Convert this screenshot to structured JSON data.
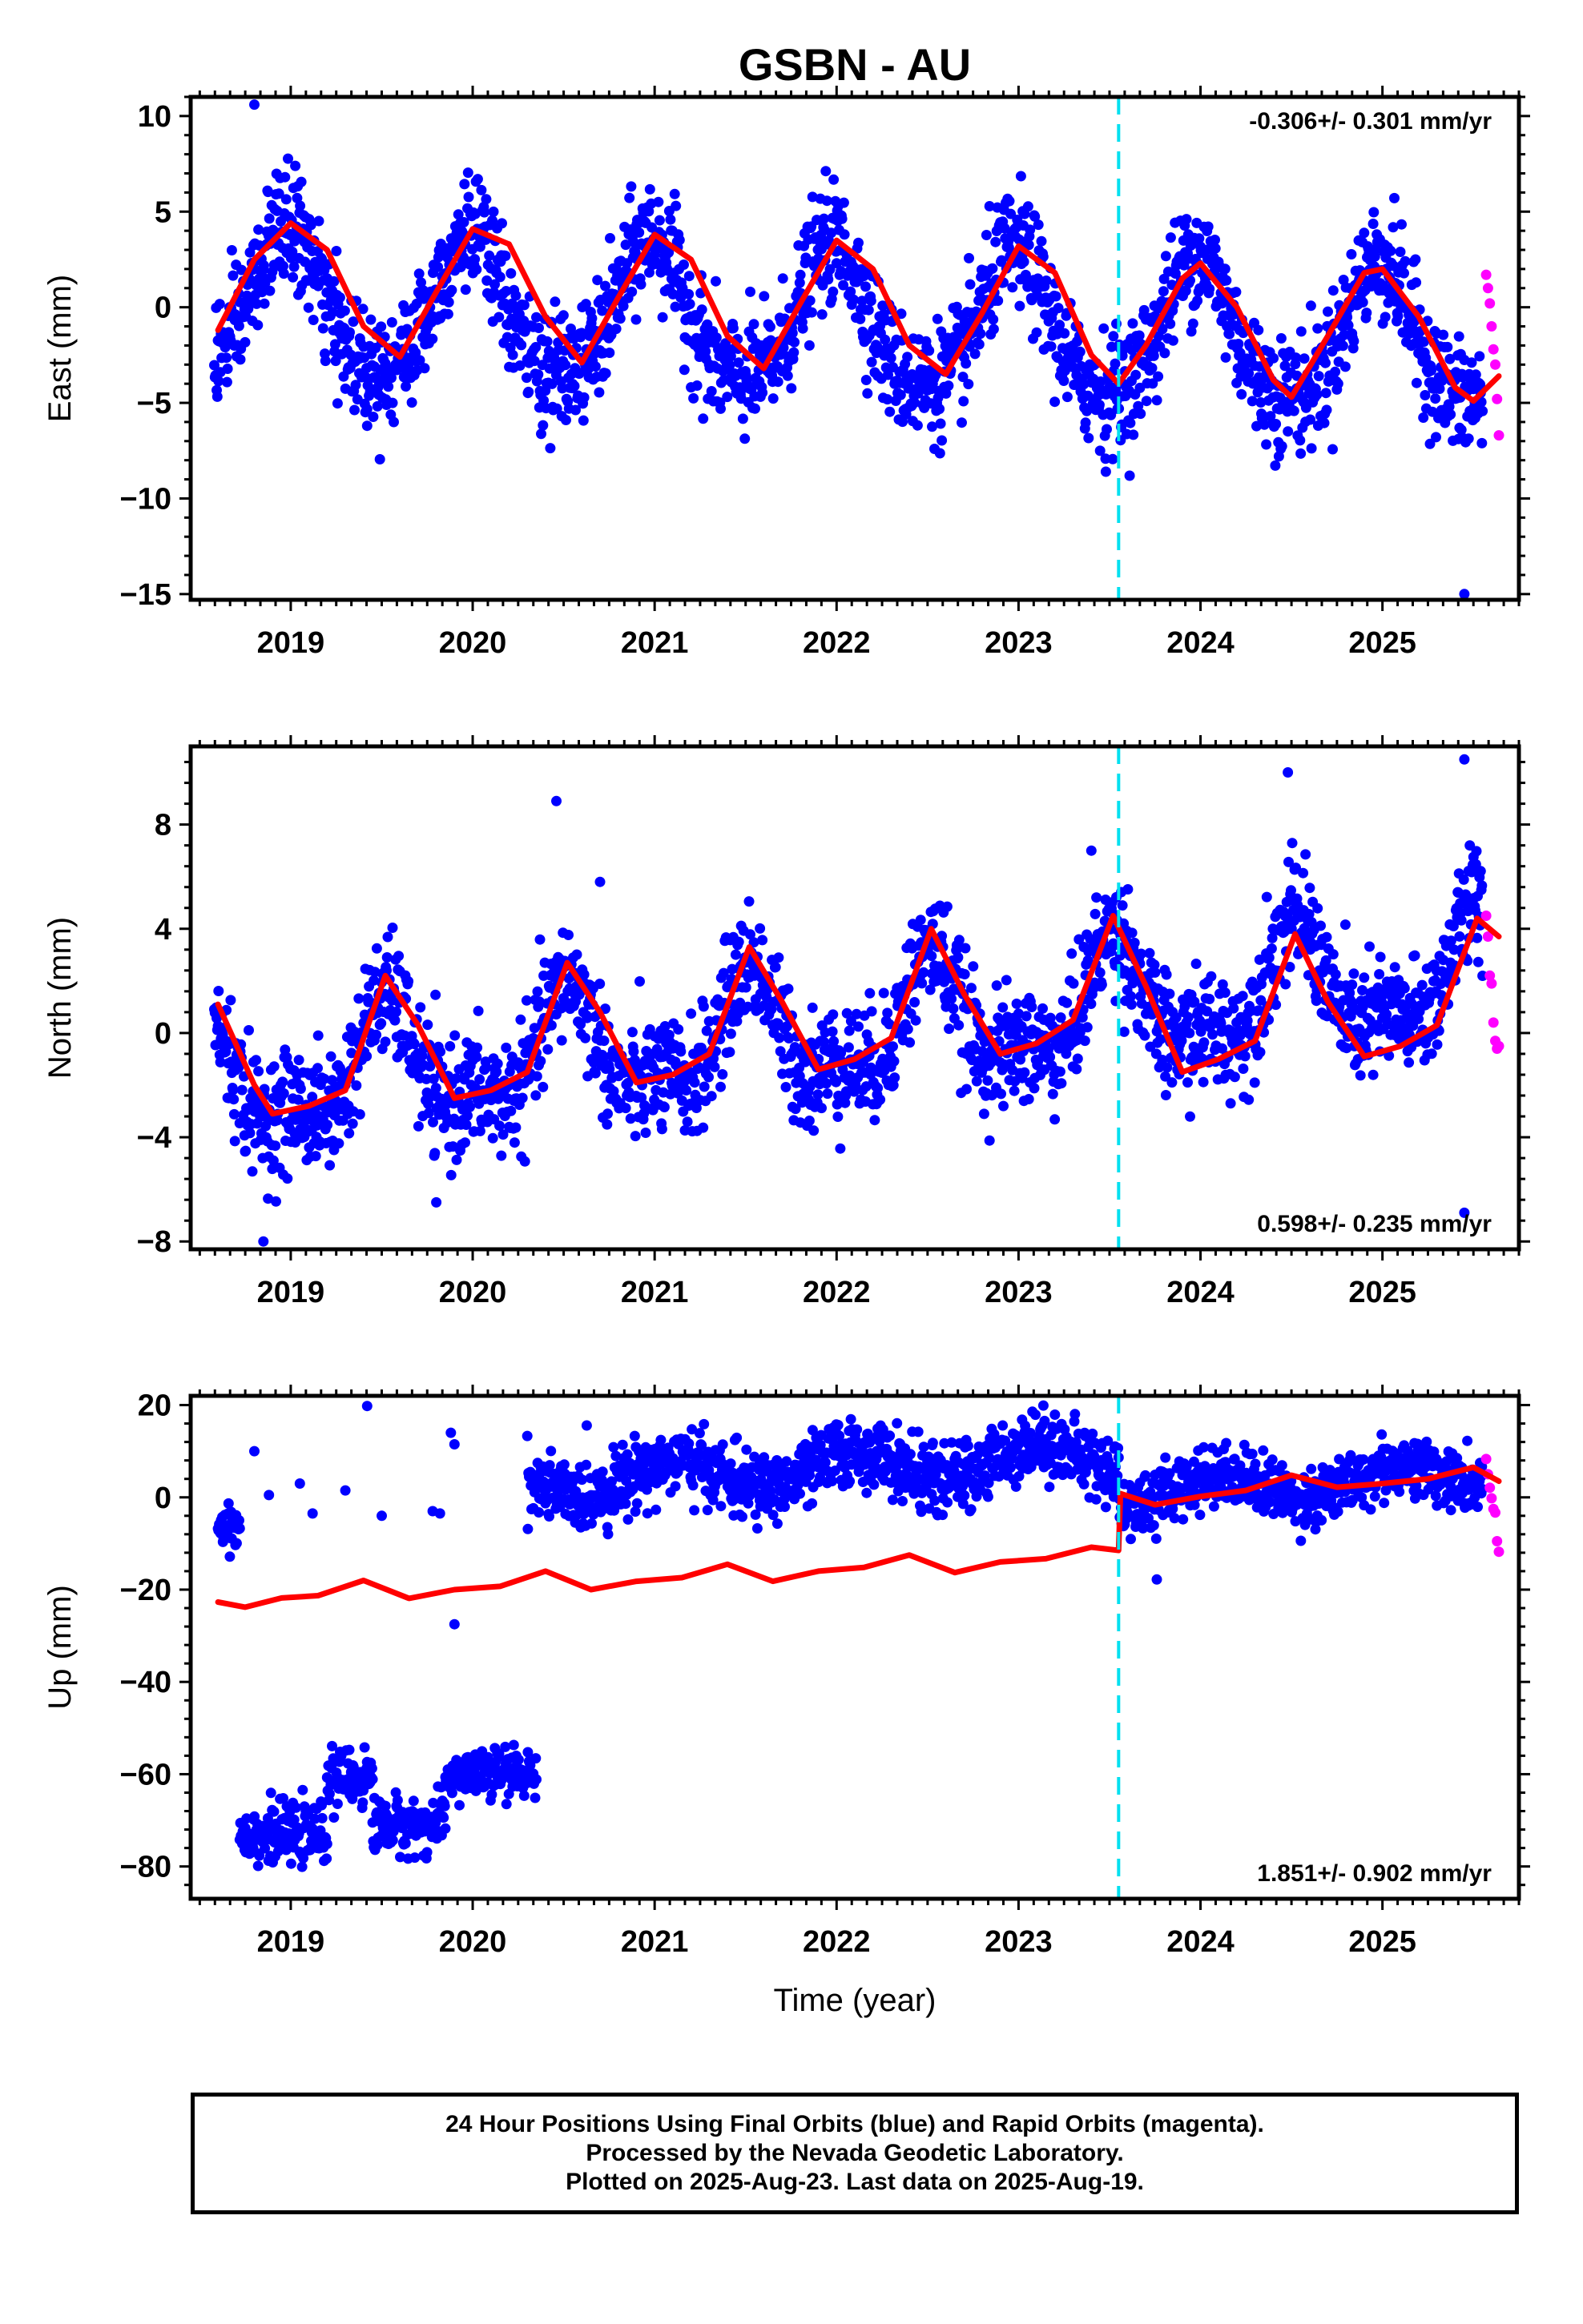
{
  "chart_data": [
    {
      "type": "scatter",
      "title": "GSBN - AU",
      "ylabel": "East (mm)",
      "xlabel": "",
      "xlim": [
        2018.45,
        2025.75
      ],
      "ylim": [
        -15.3,
        11
      ],
      "yticks": [
        10,
        5,
        0,
        -5,
        -10,
        -15
      ],
      "xticks": [
        2019,
        2020,
        2021,
        2022,
        2023,
        2024,
        2025
      ],
      "rate_text": "-0.306+/- 0.301 mm/yr",
      "rate_position": "top-right",
      "offset_epoch": 2023.55,
      "series": [
        {
          "color": "#0000ff",
          "model": {
            "slope": -0.306,
            "intercept": 0.2,
            "annual_amplitude": 3.6,
            "annual_peak_year": 2018.98,
            "semiannual_amplitude": 0.6,
            "semiannual_peak_year": 2018.98
          },
          "scatter_sd": 1.5,
          "x_range": [
            2018.58,
            2025.55
          ]
        },
        {
          "color": "#ff00ff",
          "x_range": [
            2025.57,
            2025.64
          ],
          "values": [
            1.7,
            1.0,
            0.2,
            -1.0,
            -2.2,
            -3.0,
            -4.8,
            -6.7
          ]
        }
      ],
      "outliers": [
        [
          2018.8,
          10.6
        ],
        [
          2025.45,
          -15.0
        ],
        [
          2019.42,
          -6.2
        ],
        [
          2023.48,
          -8.6
        ]
      ],
      "fit_color": "#ff0000",
      "fit": {
        "x": [
          2018.6,
          2018.8,
          2019.0,
          2019.2,
          2019.4,
          2019.6,
          2019.8,
          2020.0,
          2020.2,
          2020.4,
          2020.6,
          2020.8,
          2021.0,
          2021.2,
          2021.4,
          2021.6,
          2021.8,
          2022.0,
          2022.2,
          2022.4,
          2022.6,
          2022.8,
          2023.0,
          2023.2,
          2023.4,
          2023.55,
          2023.7,
          2023.9,
          2024.0,
          2024.2,
          2024.4,
          2024.5,
          2024.7,
          2024.9,
          2025.0,
          2025.2,
          2025.4,
          2025.5,
          2025.64
        ],
        "y": [
          -1.2,
          2.5,
          4.4,
          3.0,
          -1.0,
          -2.6,
          0.8,
          4.1,
          3.3,
          -0.5,
          -2.9,
          0.5,
          3.8,
          2.5,
          -1.5,
          -3.2,
          0.2,
          3.5,
          2.0,
          -2.0,
          -3.5,
          -0.3,
          3.2,
          1.8,
          -2.5,
          -4.0,
          -2.0,
          1.5,
          2.3,
          0.0,
          -3.8,
          -4.7,
          -1.5,
          1.8,
          2.0,
          -0.5,
          -4.2,
          -4.9,
          -3.6
        ]
      }
    },
    {
      "type": "scatter",
      "title": "",
      "ylabel": "North (mm)",
      "xlabel": "",
      "xlim": [
        2018.45,
        2025.75
      ],
      "ylim": [
        -8.3,
        11
      ],
      "yticks": [
        8,
        4,
        0,
        -4,
        -8
      ],
      "xticks": [
        2019,
        2020,
        2021,
        2022,
        2023,
        2024,
        2025
      ],
      "rate_text": "0.598+/- 0.235 mm/yr",
      "rate_position": "bottom-right",
      "offset_epoch": 2023.55,
      "series": [
        {
          "color": "#0000ff",
          "model": {
            "slope": 0.598,
            "intercept": -2.0,
            "annual_amplitude": 2.0,
            "annual_peak_year": 2019.52,
            "semiannual_amplitude": 0.9,
            "semiannual_peak_year": 2019.52
          },
          "scatter_sd": 1.1,
          "x_range": [
            2018.58,
            2025.55
          ]
        },
        {
          "color": "#ff00ff",
          "x_range": [
            2025.57,
            2025.64
          ],
          "values": [
            4.5,
            3.7,
            2.2,
            1.9,
            0.4,
            -0.3,
            -0.6,
            -0.5
          ]
        }
      ],
      "outliers": [
        [
          2020.46,
          8.9
        ],
        [
          2024.48,
          10.0
        ],
        [
          2025.45,
          10.5
        ],
        [
          2025.45,
          -6.9
        ],
        [
          2018.85,
          -8.0
        ],
        [
          2019.8,
          -6.5
        ],
        [
          2020.7,
          5.8
        ],
        [
          2023.4,
          7.0
        ]
      ],
      "fit_color": "#ff0000",
      "fit": {
        "x": [
          2018.6,
          2018.8,
          2018.9,
          2019.1,
          2019.3,
          2019.52,
          2019.7,
          2019.9,
          2020.1,
          2020.3,
          2020.52,
          2020.7,
          2020.9,
          2021.1,
          2021.3,
          2021.52,
          2021.7,
          2021.9,
          2022.1,
          2022.3,
          2022.52,
          2022.7,
          2022.9,
          2023.1,
          2023.3,
          2023.52,
          2023.7,
          2023.9,
          2024.1,
          2024.3,
          2024.52,
          2024.7,
          2024.9,
          2025.1,
          2025.3,
          2025.52,
          2025.64
        ],
        "y": [
          1.1,
          -2.0,
          -3.1,
          -2.8,
          -2.2,
          2.2,
          0.3,
          -2.5,
          -2.2,
          -1.5,
          2.7,
          0.8,
          -1.9,
          -1.6,
          -0.8,
          3.3,
          1.2,
          -1.4,
          -1.0,
          -0.2,
          4.0,
          1.5,
          -0.8,
          -0.4,
          0.5,
          4.5,
          1.8,
          -1.5,
          -1.0,
          -0.3,
          3.8,
          1.2,
          -0.9,
          -0.5,
          0.3,
          4.4,
          3.7
        ]
      }
    },
    {
      "type": "scatter",
      "title": "",
      "ylabel": "Up (mm)",
      "xlabel": "Time (year)",
      "xlim": [
        2018.45,
        2025.75
      ],
      "ylim": [
        -87,
        22
      ],
      "yticks": [
        20,
        0,
        -20,
        -40,
        -60,
        -80
      ],
      "xticks": [
        2019,
        2020,
        2021,
        2022,
        2023,
        2024,
        2025
      ],
      "rate_text": "1.851+/- 0.902 mm/yr",
      "rate_position": "bottom-right",
      "offset_epoch": 2023.55,
      "series": [
        {
          "color": "#0000ff",
          "segments": [
            {
              "x_range": [
                2018.6,
                2018.72
              ],
              "level": -6,
              "scatter_sd": 2.5
            },
            {
              "x_range": [
                2018.72,
                2019.2
              ],
              "level": -73,
              "scatter_sd": 3.0
            },
            {
              "x_range": [
                2019.2,
                2019.45
              ],
              "level": -61,
              "scatter_sd": 3.0
            },
            {
              "x_range": [
                2019.45,
                2019.85
              ],
              "level": -71,
              "scatter_sd": 3.0
            },
            {
              "x_range": [
                2019.85,
                2020.35
              ],
              "level": -60,
              "scatter_sd": 2.8
            },
            {
              "x_range": [
                2020.3,
                2023.55
              ],
              "level": 3,
              "slope": 1.851,
              "annual_amplitude": 3.5,
              "scatter_sd": 3.6
            },
            {
              "x_range": [
                2023.55,
                2025.55
              ],
              "level": 1,
              "slope": 1.851,
              "annual_amplitude": 3.0,
              "scatter_sd": 3.2
            }
          ]
        },
        {
          "color": "#ff00ff",
          "x_range": [
            2025.57,
            2025.64
          ],
          "values": [
            8.3,
            5.0,
            2.1,
            -0.2,
            -2.5,
            -3.3,
            -9.5,
            -11.8
          ]
        }
      ],
      "outliers": [
        [
          2019.42,
          19.8
        ],
        [
          2019.9,
          -27.5
        ],
        [
          2023.76,
          -17.8
        ],
        [
          2018.8,
          10.0
        ],
        [
          2019.88,
          14.0
        ],
        [
          2019.9,
          11.5
        ],
        [
          2018.88,
          0.5
        ],
        [
          2019.05,
          3.0
        ],
        [
          2019.12,
          -3.5
        ],
        [
          2019.3,
          1.5
        ],
        [
          2019.5,
          -4.0
        ],
        [
          2019.78,
          -3.0
        ],
        [
          2019.82,
          -3.5
        ]
      ],
      "fit_color": "#ff0000",
      "fit": {
        "x": [
          2018.6,
          2018.75,
          2018.95,
          2019.15,
          2019.4,
          2019.65,
          2019.9,
          2020.15,
          2020.4,
          2020.65,
          2020.9,
          2021.15,
          2021.4,
          2021.65,
          2021.9,
          2022.15,
          2022.4,
          2022.65,
          2022.9,
          2023.15,
          2023.4,
          2023.55,
          2023.56,
          2023.75,
          2024.0,
          2024.25,
          2024.5,
          2024.75,
          2025.0,
          2025.25,
          2025.5,
          2025.64
        ],
        "y": [
          -22.7,
          -23.8,
          -21.8,
          -21.3,
          -18.0,
          -21.9,
          -20.0,
          -19.3,
          -16.0,
          -20.0,
          -18.2,
          -17.4,
          -14.5,
          -18.2,
          -16.0,
          -15.2,
          -12.5,
          -16.3,
          -14.0,
          -13.3,
          -10.8,
          -11.5,
          0.8,
          -1.6,
          0.2,
          1.5,
          4.8,
          2.2,
          3.0,
          4.0,
          6.5,
          3.5
        ]
      }
    }
  ],
  "footer": {
    "line1": "24 Hour Positions Using Final Orbits (blue) and Rapid Orbits (magenta).",
    "line2": "Processed by the Nevada Geodetic Laboratory.",
    "line3": "Plotted on 2025-Aug-23. Last data on 2025-Aug-19."
  }
}
